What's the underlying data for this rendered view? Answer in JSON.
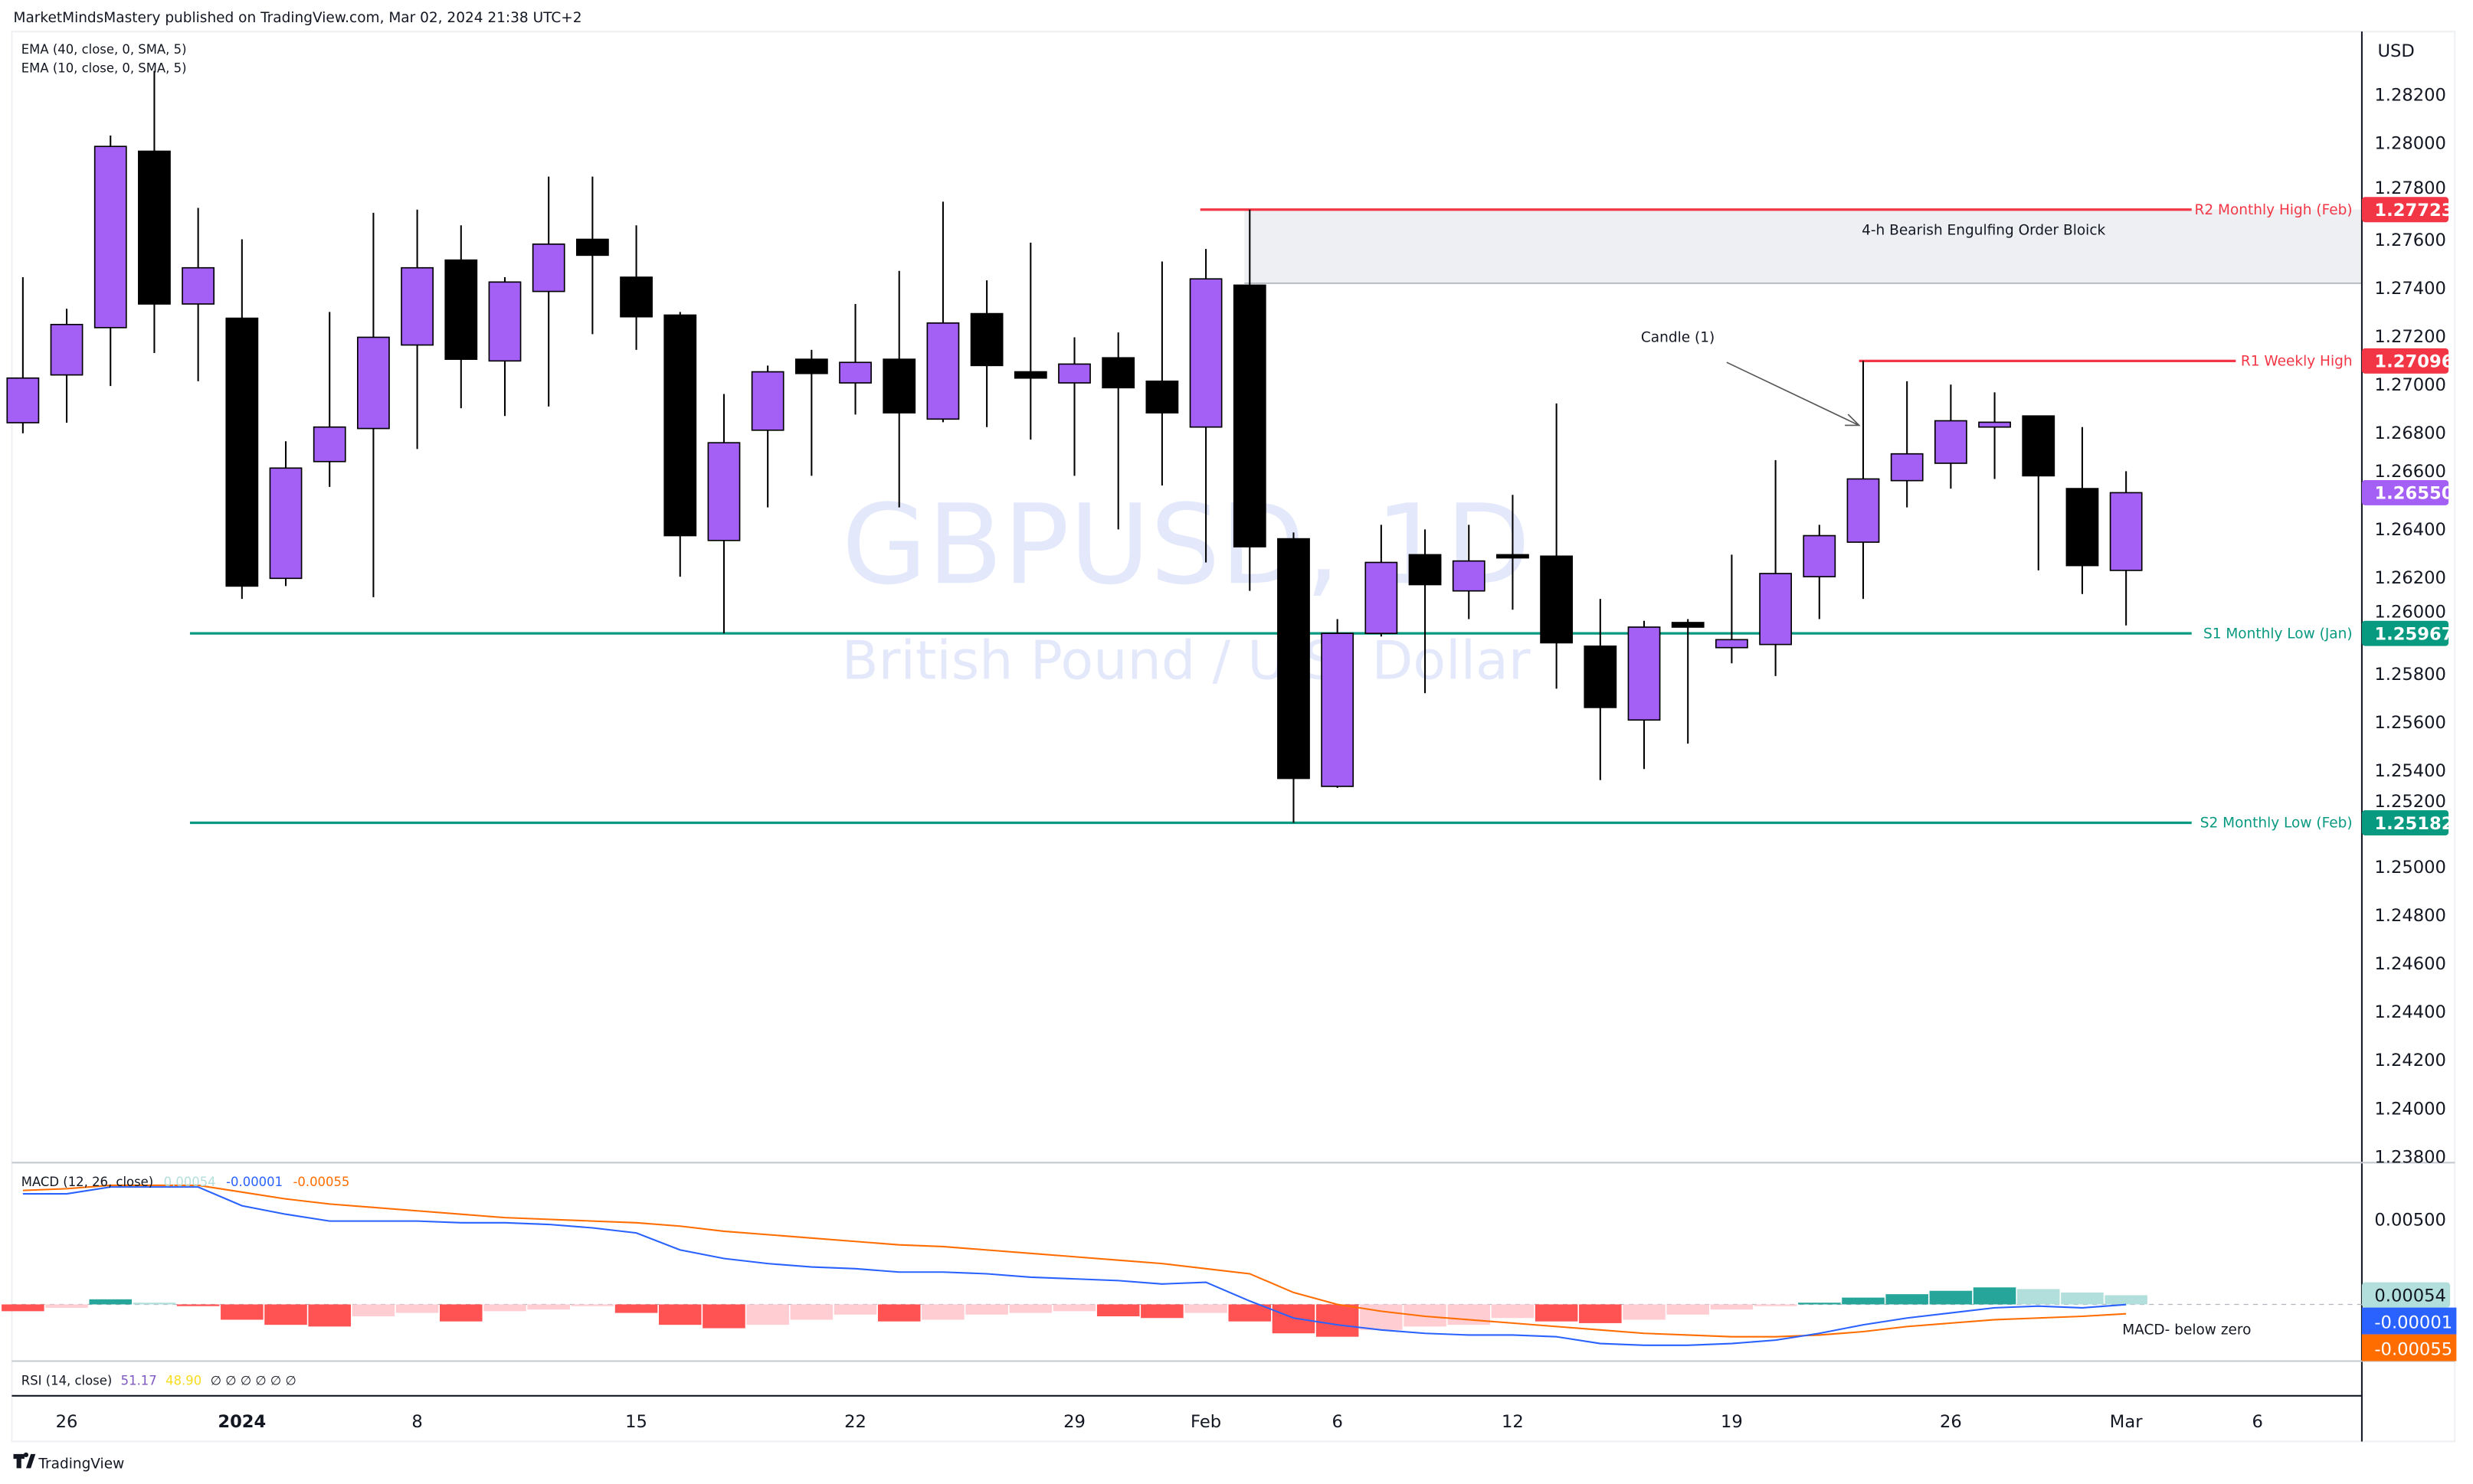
{
  "header": {
    "published": "MarketMindsMastery published on TradingView.com, Mar 02, 2024 21:38 UTC+2"
  },
  "indicators": {
    "ema1": "EMA (40, close, 0, SMA, 5)",
    "ema2": "EMA (10, close, 0, SMA, 5)",
    "macd_label": "MACD (12, 26, close)",
    "macd_hist": "0.00054",
    "macd_line": "-0.00001",
    "macd_signal": "-0.00055",
    "rsi_label": "RSI (14, close)",
    "rsi_value": "51.17",
    "rsi_ma": "48.90",
    "rsi_extra": "∅ ∅ ∅ ∅ ∅ ∅"
  },
  "watermark": {
    "symbol": "GBPUSD, 1D",
    "name": "British Pound / U.S. Dollar"
  },
  "price_axis": {
    "currency": "USD",
    "ticks": [
      "1.28200",
      "1.28000",
      "1.27800",
      "1.27600",
      "1.27400",
      "1.27200",
      "1.27000",
      "1.26800",
      "1.26600",
      "1.26400",
      "1.26200",
      "1.26000",
      "1.25800",
      "1.25600",
      "1.25400",
      "1.25200",
      "1.25000",
      "1.24800",
      "1.24600",
      "1.24400",
      "1.24200",
      "1.24000",
      "1.23800"
    ],
    "range": [
      1.238,
      1.282
    ]
  },
  "macd_axis": {
    "tick": "0.00500"
  },
  "time_axis": {
    "labels": [
      "26",
      "2024",
      "8",
      "15",
      "22",
      "29",
      "Feb",
      "6",
      "12",
      "19",
      "26",
      "Mar",
      "6"
    ]
  },
  "levels": [
    {
      "label": "R2 Monthly High (Feb)",
      "price": 1.27723,
      "value": "1.27723",
      "color": "#f23645"
    },
    {
      "label": "R1 Weekly High",
      "price": 1.27096,
      "value": "1.27096",
      "color": "#f23645"
    },
    {
      "label": "S1 Monthly Low (Jan)",
      "price": 1.25967,
      "value": "1.25967",
      "color": "#089981"
    },
    {
      "label": "S2 Monthly Low (Feb)",
      "price": 1.25182,
      "value": "1.25182",
      "color": "#089981"
    }
  ],
  "last_price": {
    "value": "1.26550",
    "price": 1.2655,
    "color": "#a45ff5"
  },
  "annotations": {
    "order_block": "4-h Bearish Engulfing Order Bloick",
    "order_block_range": [
      1.27418,
      1.27723
    ],
    "candle_note": "Candle (1)",
    "macd_note": "MACD- below zero"
  },
  "colors": {
    "bull": "#a45ff5",
    "bear": "#000000",
    "macd": "#2962ff",
    "signal": "#ff6d00",
    "hist_up_strong": "#26a69a",
    "hist_up_weak": "#b2dfdb",
    "hist_down_strong": "#ff5252",
    "hist_down_weak": "#ffcdd2"
  },
  "chart_data": {
    "type": "candlestick",
    "ohlc": [
      [
        1.2684,
        1.27443,
        1.26796,
        1.27025
      ],
      [
        1.27038,
        1.27312,
        1.2684,
        1.27247
      ],
      [
        1.27234,
        1.2803,
        1.26992,
        1.27985
      ],
      [
        1.27965,
        1.28298,
        1.27129,
        1.27332
      ],
      [
        1.27332,
        1.2773,
        1.27012,
        1.27482
      ],
      [
        1.27273,
        1.276,
        1.2611,
        1.26163
      ],
      [
        1.26195,
        1.26763,
        1.26163,
        1.26652
      ],
      [
        1.26679,
        1.27299,
        1.26574,
        1.26822
      ],
      [
        1.26816,
        1.2771,
        1.26117,
        1.27194
      ],
      [
        1.27162,
        1.27723,
        1.26731,
        1.27482
      ],
      [
        1.27514,
        1.27658,
        1.269,
        1.27103
      ],
      [
        1.27096,
        1.27443,
        1.26868,
        1.27423
      ],
      [
        1.27384,
        1.2786,
        1.26907,
        1.2758
      ],
      [
        1.276,
        1.2786,
        1.27207,
        1.27534
      ],
      [
        1.27443,
        1.27658,
        1.27142,
        1.27279
      ],
      [
        1.27286,
        1.27299,
        1.26202,
        1.26372
      ],
      [
        1.26352,
        1.26959,
        1.25967,
        1.26757
      ],
      [
        1.26809,
        1.27077,
        1.26489,
        1.27051
      ],
      [
        1.27103,
        1.27142,
        1.2662,
        1.27044
      ],
      [
        1.27005,
        1.27332,
        1.26874,
        1.2709
      ],
      [
        1.27103,
        1.27469,
        1.26489,
        1.26881
      ],
      [
        1.26855,
        1.27756,
        1.26842,
        1.27253
      ],
      [
        1.27292,
        1.2743,
        1.26822,
        1.27077
      ],
      [
        1.27051,
        1.27586,
        1.2677,
        1.27025
      ],
      [
        1.27005,
        1.27194,
        1.2662,
        1.27083
      ],
      [
        1.27109,
        1.27214,
        1.26398,
        1.26985
      ],
      [
        1.27012,
        1.27508,
        1.2658,
        1.26881
      ],
      [
        1.26822,
        1.2756,
        1.26261,
        1.27436
      ],
      [
        1.2741,
        1.27723,
        1.26143,
        1.26326
      ],
      [
        1.26359,
        1.26385,
        1.25182,
        1.25366
      ],
      [
        1.25333,
        1.26026,
        1.25327,
        1.25967
      ],
      [
        1.25967,
        1.26417,
        1.25954,
        1.26261
      ],
      [
        1.26293,
        1.26398,
        1.25719,
        1.26169
      ],
      [
        1.26143,
        1.26417,
        1.26026,
        1.26267
      ],
      [
        1.26293,
        1.26541,
        1.26065,
        1.2628
      ],
      [
        1.26287,
        1.2692,
        1.25738,
        1.25928
      ],
      [
        1.25914,
        1.2611,
        1.25359,
        1.2566
      ],
      [
        1.25608,
        1.26019,
        1.25405,
        1.25993
      ],
      [
        1.26012,
        1.26026,
        1.2551,
        1.25993
      ],
      [
        1.25908,
        1.26293,
        1.25843,
        1.25941
      ],
      [
        1.25921,
        1.26685,
        1.2579,
        1.26215
      ],
      [
        1.26202,
        1.26417,
        1.26026,
        1.26372
      ],
      [
        1.26345,
        1.27096,
        1.2611,
        1.26607
      ],
      [
        1.266,
        1.27012,
        1.26489,
        1.26711
      ],
      [
        1.26672,
        1.26998,
        1.26567,
        1.26848
      ],
      [
        1.26822,
        1.26966,
        1.26607,
        1.26842
      ],
      [
        1.26868,
        1.26868,
        1.26228,
        1.2662
      ],
      [
        1.26567,
        1.26822,
        1.2613,
        1.26248
      ],
      [
        1.26228,
        1.26639,
        1.26,
        1.2655
      ]
    ],
    "macd_histogram": [
      -0.0004,
      -0.0002,
      0.0003,
      0.0001,
      -0.0001,
      -0.0009,
      -0.0012,
      -0.0013,
      -0.0007,
      -0.0005,
      -0.001,
      -0.0004,
      -0.0003,
      -0.0001,
      -0.0005,
      -0.0012,
      -0.0014,
      -0.0012,
      -0.0009,
      -0.0006,
      -0.001,
      -0.0009,
      -0.0006,
      -0.0005,
      -0.0004,
      -0.0007,
      -0.0008,
      -0.0005,
      -0.001,
      -0.0017,
      -0.0019,
      -0.0015,
      -0.0013,
      -0.0012,
      -0.0008,
      -0.001,
      -0.0011,
      -0.0009,
      -0.0006,
      -0.0003,
      -0.0001,
      0.0001,
      0.0004,
      0.0006,
      0.0008,
      0.001,
      0.0009,
      0.0007,
      0.00054
    ],
    "macd_line": [
      0.0065,
      0.0065,
      0.0069,
      0.0069,
      0.0069,
      0.0058,
      0.0053,
      0.0049,
      0.0049,
      0.0049,
      0.0048,
      0.0048,
      0.0047,
      0.0045,
      0.0042,
      0.0032,
      0.0027,
      0.0024,
      0.0022,
      0.0021,
      0.0019,
      0.0019,
      0.0018,
      0.0016,
      0.0015,
      0.0014,
      0.0012,
      0.0013,
      0.0002,
      -0.0008,
      -0.0012,
      -0.0015,
      -0.0017,
      -0.0018,
      -0.0018,
      -0.0019,
      -0.0023,
      -0.0024,
      -0.0024,
      -0.0023,
      -0.0021,
      -0.0017,
      -0.0012,
      -0.0008,
      -0.0005,
      -0.0002,
      -0.0001,
      -0.0002,
      -1e-05
    ],
    "signal_line": [
      0.0067,
      0.0068,
      0.007,
      0.007,
      0.007,
      0.0066,
      0.0062,
      0.0059,
      0.0057,
      0.0055,
      0.0053,
      0.0051,
      0.005,
      0.0049,
      0.0048,
      0.0046,
      0.0043,
      0.0041,
      0.0039,
      0.0037,
      0.0035,
      0.0034,
      0.0032,
      0.003,
      0.0028,
      0.0026,
      0.0024,
      0.0021,
      0.0018,
      0.0007,
      0.0,
      -0.0004,
      -0.0007,
      -0.0009,
      -0.0011,
      -0.0013,
      -0.0015,
      -0.0017,
      -0.0018,
      -0.0019,
      -0.0019,
      -0.0018,
      -0.0016,
      -0.0013,
      -0.0011,
      -0.0009,
      -0.0008,
      -0.0007,
      -0.00055
    ]
  }
}
